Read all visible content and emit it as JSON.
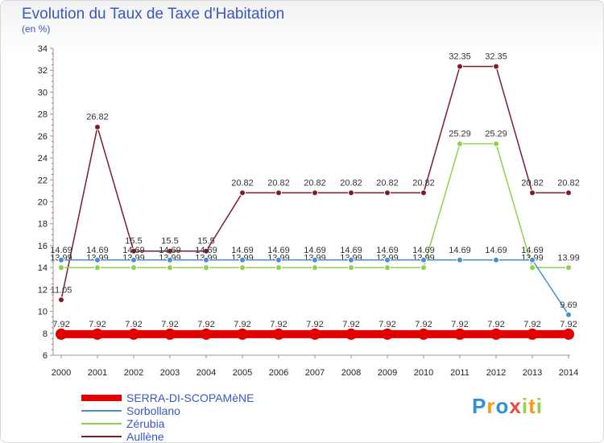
{
  "chart_data": {
    "type": "line",
    "title": "Evolution du Taux de Taxe d'Habitation",
    "ylabel": "(en %)",
    "xlabel": "",
    "x": [
      "2000",
      "2001",
      "2002",
      "2003",
      "2004",
      "2005",
      "2006",
      "2007",
      "2008",
      "2009",
      "2010",
      "2011",
      "2012",
      "2013",
      "2014"
    ],
    "ylim": [
      6,
      34
    ],
    "yticks": [
      6,
      8,
      10,
      12,
      14,
      16,
      18,
      20,
      22,
      24,
      26,
      28,
      30,
      32,
      34
    ],
    "grid": false,
    "series": [
      {
        "name": "SERRA-DI-SCOPAMèNE",
        "color": "#e00000",
        "values": [
          7.92,
          7.92,
          7.92,
          7.92,
          7.92,
          7.92,
          7.92,
          7.92,
          7.92,
          7.92,
          7.92,
          7.92,
          7.92,
          7.92,
          7.92
        ],
        "labels": [
          "7.92",
          "7.92",
          "7.92",
          "7.92",
          "7.92",
          "7.92",
          "7.92",
          "7.92",
          "7.92",
          "7.92",
          "7.92",
          "7.92",
          "7.92",
          "7.92",
          "7.92"
        ]
      },
      {
        "name": "Sorbollano",
        "color": "#4b8fc9",
        "values": [
          14.69,
          14.69,
          14.69,
          14.69,
          14.69,
          14.69,
          14.69,
          14.69,
          14.69,
          14.69,
          14.69,
          14.69,
          14.69,
          14.69,
          9.69
        ],
        "labels": [
          "14.69",
          "14.69",
          "14.69",
          "14.69",
          "14.69",
          "14.69",
          "14.69",
          "14.69",
          "14.69",
          "14.69",
          "14.69",
          "14.69",
          "14.69",
          "14.69",
          "9.69"
        ]
      },
      {
        "name": "Zérubia",
        "color": "#8fd24a",
        "values": [
          13.99,
          13.99,
          13.99,
          13.99,
          13.99,
          13.99,
          13.99,
          13.99,
          13.99,
          13.99,
          13.99,
          25.29,
          25.29,
          13.99,
          13.99
        ],
        "labels": [
          "13.99",
          "13.99",
          "13.99",
          "13.99",
          "13.99",
          "13.99",
          "13.99",
          "13.99",
          "13.99",
          "13.99",
          "13.99",
          "25.29",
          "25.29",
          "13.99",
          "13.99"
        ]
      },
      {
        "name": "Aullène",
        "color": "#7a1f28",
        "values": [
          11.05,
          26.82,
          15.5,
          15.5,
          15.5,
          20.82,
          20.82,
          20.82,
          20.82,
          20.82,
          20.82,
          32.35,
          32.35,
          20.82,
          20.82
        ],
        "labels": [
          "11.05",
          "26.82",
          "15.5",
          "15.5",
          "15.5",
          "20.82",
          "20.82",
          "20.82",
          "20.82",
          "20.82",
          "20.82",
          "32.35",
          "32.35",
          "20.82",
          "20.82"
        ]
      }
    ]
  },
  "logo": {
    "letters": [
      "P",
      "r",
      "o",
      "x",
      "i",
      "t",
      "i"
    ],
    "colors": [
      "#2f8fd8",
      "#f39c12",
      "#2f8fd8",
      "#e74c3c",
      "#8fd24a",
      "#f39c12",
      "#8fd24a"
    ]
  }
}
